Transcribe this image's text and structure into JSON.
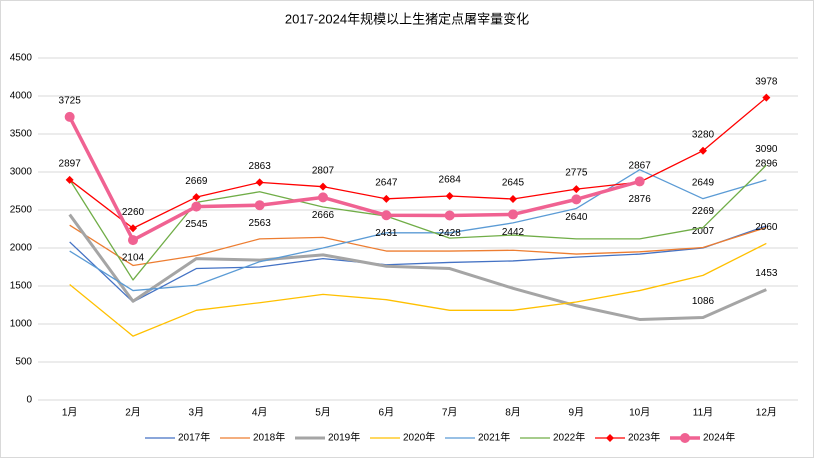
{
  "chart_data": {
    "type": "line",
    "title": "2017-2024年规模以上生猪定点屠宰量变化",
    "categories": [
      "1月",
      "2月",
      "3月",
      "4月",
      "5月",
      "6月",
      "7月",
      "8月",
      "9月",
      "10月",
      "11月",
      "12月"
    ],
    "ylim": [
      0,
      4500
    ],
    "yticks": [
      0,
      500,
      1000,
      1500,
      2000,
      2500,
      3000,
      3500,
      4000,
      4500
    ],
    "grid": true,
    "legend": "bottom",
    "series": [
      {
        "name": "2017年",
        "color": "#4472c4",
        "width": 1.3,
        "values": [
          2080,
          1290,
          1730,
          1750,
          1860,
          1780,
          1810,
          1830,
          1880,
          1920,
          2000,
          2290
        ]
      },
      {
        "name": "2018年",
        "color": "#ed7d31",
        "width": 1.3,
        "values": [
          2300,
          1770,
          1900,
          2120,
          2140,
          1960,
          1960,
          1970,
          1920,
          1950,
          2007,
          2270
        ],
        "label_points": [
          10
        ]
      },
      {
        "name": "2019年",
        "color": "#a5a5a5",
        "width": 3,
        "values": [
          2440,
          1300,
          1860,
          1840,
          1910,
          1760,
          1730,
          1470,
          1240,
          1060,
          1086,
          1453
        ],
        "label_points": [
          10,
          11
        ]
      },
      {
        "name": "2020年",
        "color": "#ffc000",
        "width": 1.3,
        "values": [
          1520,
          840,
          1180,
          1280,
          1390,
          1320,
          1180,
          1180,
          1290,
          1440,
          1640,
          2060
        ],
        "label_points": [
          11
        ]
      },
      {
        "name": "2021年",
        "color": "#5b9bd5",
        "width": 1.3,
        "values": [
          1960,
          1440,
          1510,
          1820,
          2000,
          2200,
          2200,
          2330,
          2520,
          3030,
          2649,
          2896
        ],
        "label_points": [
          10,
          11
        ]
      },
      {
        "name": "2022年",
        "color": "#70ad47",
        "width": 1.3,
        "values": [
          2900,
          1580,
          2600,
          2740,
          2540,
          2420,
          2130,
          2170,
          2120,
          2120,
          2269,
          3090
        ],
        "label_points": [
          10,
          11
        ]
      },
      {
        "name": "2023年",
        "color": "#ff0000",
        "width": 1.3,
        "marker": "diamond",
        "values": [
          2897,
          2260,
          2669,
          2863,
          2807,
          2647,
          2684,
          2645,
          2775,
          2867,
          3280,
          3978
        ],
        "label_points": [
          0,
          1,
          2,
          3,
          4,
          5,
          6,
          7,
          8,
          9,
          10,
          11
        ]
      },
      {
        "name": "2024年",
        "color": "#f06292",
        "width": 3.5,
        "marker": "circle",
        "values": [
          3725,
          2104,
          2545,
          2563,
          2666,
          2431,
          2428,
          2442,
          2640,
          2876,
          null,
          null
        ],
        "label_points": [
          0,
          1,
          2,
          3,
          4,
          5,
          6,
          7,
          8,
          9
        ],
        "label_side": "below"
      }
    ]
  }
}
